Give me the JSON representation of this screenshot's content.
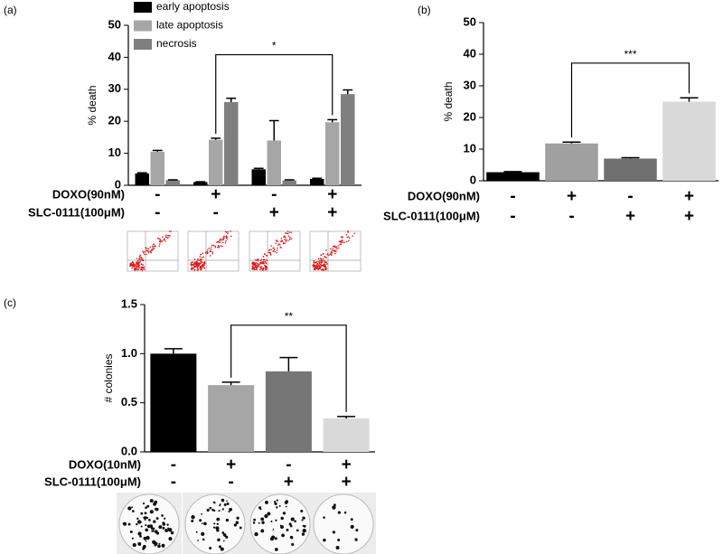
{
  "chart_data": [
    {
      "type": "bar",
      "panel_label": "(a)",
      "y_label": "% death",
      "ylim": [
        0,
        50
      ],
      "yticks": [
        0,
        10,
        20,
        30,
        40,
        50
      ],
      "legend": "top-left",
      "series": [
        {
          "name": "early apoptosis",
          "color": "#000000",
          "values": [
            3.7,
            1.0,
            5.0,
            2.0
          ],
          "errors": [
            0.2,
            0.1,
            0.3,
            0.2
          ]
        },
        {
          "name": "late apoptosis",
          "color": "#a6a6a6",
          "values": [
            10.5,
            14.2,
            14.0,
            19.7
          ],
          "errors": [
            0.4,
            0.5,
            6.2,
            0.8
          ]
        },
        {
          "name": "necrosis",
          "color": "#7f7f7f",
          "values": [
            1.6,
            26.0,
            1.5,
            28.5
          ],
          "errors": [
            0.1,
            1.2,
            0.2,
            1.3
          ]
        }
      ],
      "treatments": [
        {
          "name": "DOXO(90nM)",
          "signs": [
            "-",
            "+",
            "-",
            "+"
          ]
        },
        {
          "name": "SLC-0111(100μM)",
          "signs": [
            "-",
            "-",
            "+",
            "+"
          ]
        }
      ],
      "significance": {
        "label": "*",
        "between": [
          1,
          3
        ],
        "series": 1
      }
    },
    {
      "type": "bar",
      "panel_label": "(b)",
      "y_label": "% death",
      "ylim": [
        0,
        50
      ],
      "yticks": [
        0,
        10,
        20,
        30,
        40,
        50
      ],
      "values": [
        2.7,
        11.8,
        7.0,
        25.0
      ],
      "errors": [
        0.2,
        0.4,
        0.3,
        1.2
      ],
      "colors": [
        "#000000",
        "#a0a0a0",
        "#6f6f6f",
        "#d9d9d9"
      ],
      "treatments": [
        {
          "name": "DOXO(90nM)",
          "signs": [
            "-",
            "+",
            "-",
            "+"
          ]
        },
        {
          "name": "SLC-0111(100μM)",
          "signs": [
            "-",
            "-",
            "+",
            "+"
          ]
        }
      ],
      "significance": {
        "label": "***",
        "between": [
          1,
          3
        ]
      }
    },
    {
      "type": "bar",
      "panel_label": "(c)",
      "y_label": "# colonies",
      "ylim": [
        0,
        1.5
      ],
      "yticks": [
        {
          "value": 0,
          "label": "0.0"
        },
        0.5,
        {
          "value": 1,
          "label": "1.0"
        },
        1.5
      ],
      "values": [
        1.0,
        0.68,
        0.82,
        0.34
      ],
      "errors": [
        0.05,
        0.03,
        0.14,
        0.02
      ],
      "colors": [
        "#000000",
        "#a6a6a6",
        "#767676",
        "#d9d9d9"
      ],
      "treatments": [
        {
          "name": "DOXO(10nM)",
          "signs": [
            "-",
            "+",
            "-",
            "+"
          ]
        },
        {
          "name": "SLC-0111(100μM)",
          "signs": [
            "-",
            "-",
            "+",
            "+"
          ]
        }
      ],
      "significance": {
        "label": "**",
        "between": [
          1,
          3
        ]
      }
    }
  ]
}
